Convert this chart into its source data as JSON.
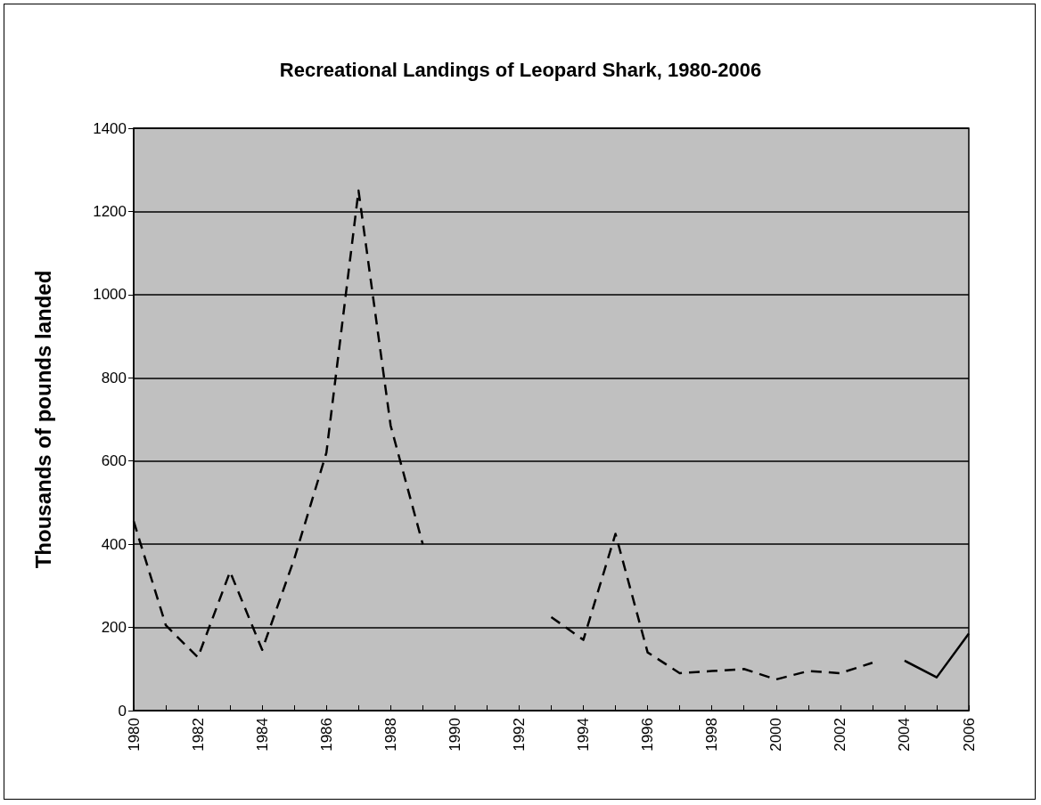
{
  "chart_data": {
    "type": "line",
    "title": "Recreational Landings of Leopard Shark, 1980-2006",
    "ylabel": "Thousands of pounds landed",
    "series": [
      {
        "color": "#000000",
        "line_style": "dashed",
        "x": [
          1980,
          1981,
          1982,
          1983,
          1984,
          1985,
          1986,
          1987,
          1988,
          1989,
          1990,
          1991,
          1992,
          1993,
          1994,
          1995,
          1996,
          1997,
          1998,
          1999,
          2000,
          2001,
          2002,
          2003
        ],
        "values": [
          455,
          205,
          128,
          334,
          146,
          365,
          620,
          1250,
          685,
          400,
          null,
          null,
          null,
          225,
          170,
          425,
          140,
          90,
          95,
          100,
          75,
          95,
          90,
          115
        ]
      },
      {
        "color": "#000000",
        "line_style": "solid",
        "x": [
          2004,
          2005,
          2006
        ],
        "values": [
          120,
          80,
          185
        ]
      }
    ],
    "xlim": [
      1980,
      2006
    ],
    "xticks": [
      1980,
      {
        "value": 1981,
        "label": null
      },
      1982,
      {
        "value": 1983,
        "label": null
      },
      1984,
      {
        "value": 1985,
        "label": null
      },
      1986,
      {
        "value": 1987,
        "label": null
      },
      1988,
      {
        "value": 1989,
        "label": null
      },
      1990,
      {
        "value": 1991,
        "label": null
      },
      1992,
      {
        "value": 1993,
        "label": null
      },
      1994,
      {
        "value": 1995,
        "label": null
      },
      1996,
      {
        "value": 1997,
        "label": null
      },
      1998,
      {
        "value": 1999,
        "label": null
      },
      2000,
      {
        "value": 2001,
        "label": null
      },
      2002,
      {
        "value": 2003,
        "label": null
      },
      2004,
      {
        "value": 2005,
        "label": null
      },
      2006
    ],
    "ylim": [
      0,
      1400
    ],
    "yticks": [
      0,
      200,
      400,
      600,
      800,
      1000,
      1200,
      1400
    ],
    "grid": "y",
    "marker": "none"
  }
}
